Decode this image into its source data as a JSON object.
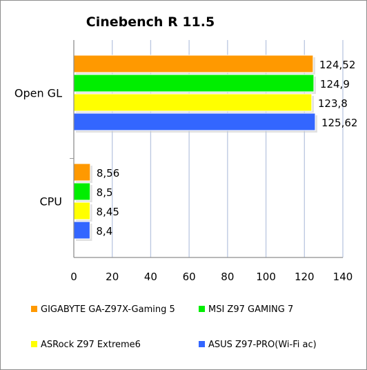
{
  "chart_data": {
    "type": "bar",
    "orientation": "horizontal",
    "title": "Cinebench R 11.5",
    "xlabel": "",
    "ylabel": "",
    "categories": [
      "Open GL",
      "CPU"
    ],
    "series": [
      {
        "name": "GIGABYTE GA-Z97X-Gaming 5",
        "color": "#ff9900",
        "values": [
          124.52,
          8.56
        ],
        "labels": [
          "124,52",
          "8,56"
        ]
      },
      {
        "name": "MSI Z97 GAMING 7",
        "color": "#00ee00",
        "values": [
          124.9,
          8.5
        ],
        "labels": [
          "124,9",
          "8,5"
        ]
      },
      {
        "name": "ASRock Z97 Extreme6",
        "color": "#ffff00",
        "values": [
          123.8,
          8.45
        ],
        "labels": [
          "123,8",
          "8,45"
        ]
      },
      {
        "name": "ASUS Z97-PRO(Wi-Fi ac)",
        "color": "#3366ff",
        "values": [
          125.62,
          8.4
        ],
        "labels": [
          "125,62",
          "8,4"
        ]
      }
    ],
    "xlim": [
      0,
      140
    ],
    "xticks": [
      0,
      20,
      40,
      60,
      80,
      100,
      120,
      140
    ],
    "xtick_labels": [
      "0",
      "20",
      "40",
      "60",
      "80",
      "100",
      "120",
      "140"
    ],
    "grid": true,
    "legend": "bottom"
  }
}
